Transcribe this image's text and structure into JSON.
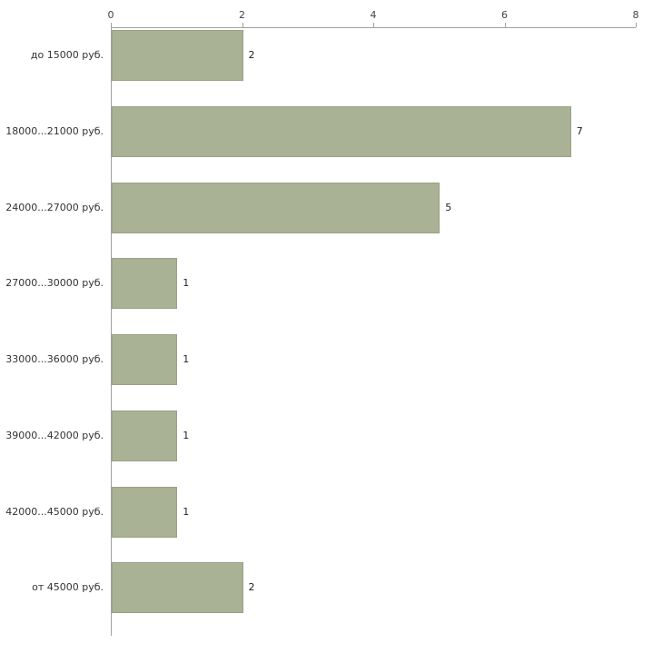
{
  "chart_data": {
    "type": "bar",
    "orientation": "horizontal",
    "title": "",
    "categories": [
      "до 15000 руб.",
      "18000...21000 руб.",
      "24000...27000 руб.",
      "27000...30000 руб.",
      "33000...36000 руб.",
      "39000...42000 руб.",
      "42000...45000 руб.",
      "от 45000 руб."
    ],
    "values": [
      2,
      7,
      5,
      1,
      1,
      1,
      1,
      2
    ],
    "value_labels": [
      "2",
      "7",
      "5",
      "1",
      "1",
      "1",
      "1",
      "2"
    ],
    "xlim": [
      0,
      8
    ],
    "x_ticks": [
      0,
      2,
      4,
      6,
      8
    ],
    "x_tick_labels": [
      "0",
      "2",
      "4",
      "6",
      "8"
    ],
    "legend": "none",
    "grid": "off",
    "bar_color": "#a9b294",
    "bar_border_color": "#97a285",
    "axis_color": "#a0a0a0",
    "label_color": "#333333",
    "background_color": "#ffffff"
  }
}
